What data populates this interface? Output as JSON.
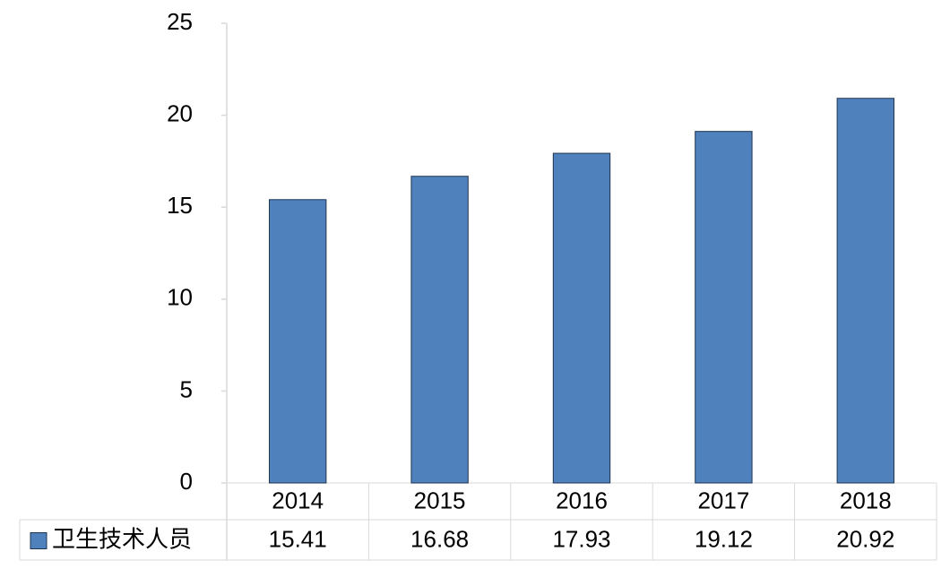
{
  "chart_data": {
    "type": "bar",
    "categories": [
      "2014",
      "2015",
      "2016",
      "2017",
      "2018"
    ],
    "series": [
      {
        "name": "卫生技术人员",
        "color": "#4f81bd",
        "values": [
          15.41,
          16.68,
          17.93,
          19.12,
          20.92
        ]
      }
    ],
    "ylim": [
      0,
      25
    ],
    "yticks": [
      0,
      5,
      10,
      15,
      20,
      25
    ],
    "grid": false,
    "data_table": true
  }
}
